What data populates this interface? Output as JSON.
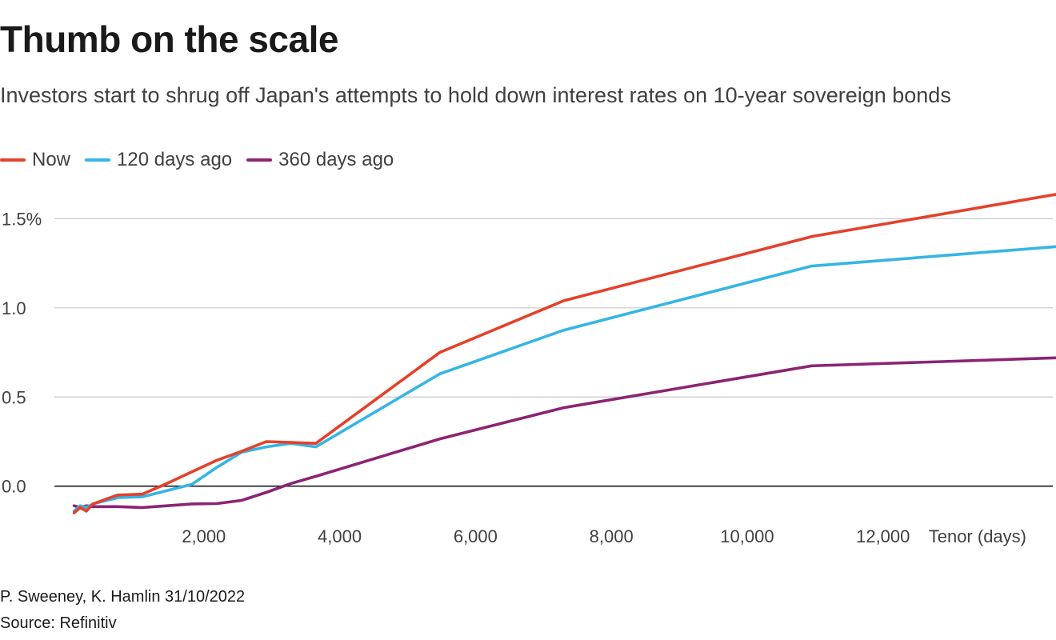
{
  "title": "Thumb on the scale",
  "subtitle": "Investors start to shrug off Japan's attempts to hold down interest rates on 10-year sovereign bonds",
  "footer": {
    "byline": "P. Sweeney, K. Hamlin 31/10/2022",
    "source": "Source: Refinitiv"
  },
  "chart_data": {
    "type": "line",
    "title": "Thumb on the scale",
    "xlabel": "Tenor (days)",
    "ylabel": "",
    "xlim": [
      -200,
      14500
    ],
    "ylim": [
      -0.19,
      1.65
    ],
    "xticks": [
      {
        "value": 2000,
        "label": "2,000"
      },
      {
        "value": 4000,
        "label": "4,000"
      },
      {
        "value": 6000,
        "label": "6,000"
      },
      {
        "value": 8000,
        "label": "8,000"
      },
      {
        "value": 10000,
        "label": "10,000"
      },
      {
        "value": 12000,
        "label": "12,000"
      }
    ],
    "yticks": [
      {
        "value": 1.5,
        "label": "1.5%"
      },
      {
        "value": 1.0,
        "label": "1.0"
      },
      {
        "value": 0.5,
        "label": "0.5"
      },
      {
        "value": 0.0,
        "label": "0.0"
      }
    ],
    "legend_position": "top-left",
    "series": [
      {
        "name": "Now",
        "color": "#e5402a",
        "points": [
          [
            90,
            -0.15
          ],
          [
            180,
            -0.12
          ],
          [
            270,
            -0.14
          ],
          [
            365,
            -0.1
          ],
          [
            730,
            -0.05
          ],
          [
            1095,
            -0.045
          ],
          [
            1460,
            0.015
          ],
          [
            1825,
            0.08
          ],
          [
            2190,
            0.145
          ],
          [
            2555,
            0.195
          ],
          [
            2920,
            0.25
          ],
          [
            3285,
            0.245
          ],
          [
            3650,
            0.24
          ],
          [
            5475,
            0.75
          ],
          [
            7300,
            1.04
          ],
          [
            10950,
            1.4
          ],
          [
            14600,
            1.64
          ]
        ]
      },
      {
        "name": "120 days ago",
        "color": "#35b5e5",
        "points": [
          [
            90,
            -0.14
          ],
          [
            180,
            -0.11
          ],
          [
            270,
            -0.12
          ],
          [
            365,
            -0.1
          ],
          [
            730,
            -0.065
          ],
          [
            1095,
            -0.06
          ],
          [
            1460,
            -0.025
          ],
          [
            1825,
            0.01
          ],
          [
            2190,
            0.105
          ],
          [
            2555,
            0.19
          ],
          [
            2920,
            0.22
          ],
          [
            3285,
            0.24
          ],
          [
            3650,
            0.22
          ],
          [
            5475,
            0.63
          ],
          [
            7300,
            0.875
          ],
          [
            10950,
            1.235
          ],
          [
            14600,
            1.345
          ]
        ]
      },
      {
        "name": "360 days ago",
        "color": "#8b2473",
        "points": [
          [
            90,
            -0.11
          ],
          [
            180,
            -0.12
          ],
          [
            270,
            -0.11
          ],
          [
            365,
            -0.115
          ],
          [
            730,
            -0.115
          ],
          [
            1095,
            -0.12
          ],
          [
            1460,
            -0.11
          ],
          [
            1825,
            -0.1
          ],
          [
            2190,
            -0.098
          ],
          [
            2555,
            -0.08
          ],
          [
            2920,
            -0.035
          ],
          [
            3285,
            0.015
          ],
          [
            3650,
            0.055
          ],
          [
            5475,
            0.265
          ],
          [
            7300,
            0.44
          ],
          [
            10950,
            0.675
          ],
          [
            14600,
            0.72
          ]
        ]
      }
    ]
  }
}
